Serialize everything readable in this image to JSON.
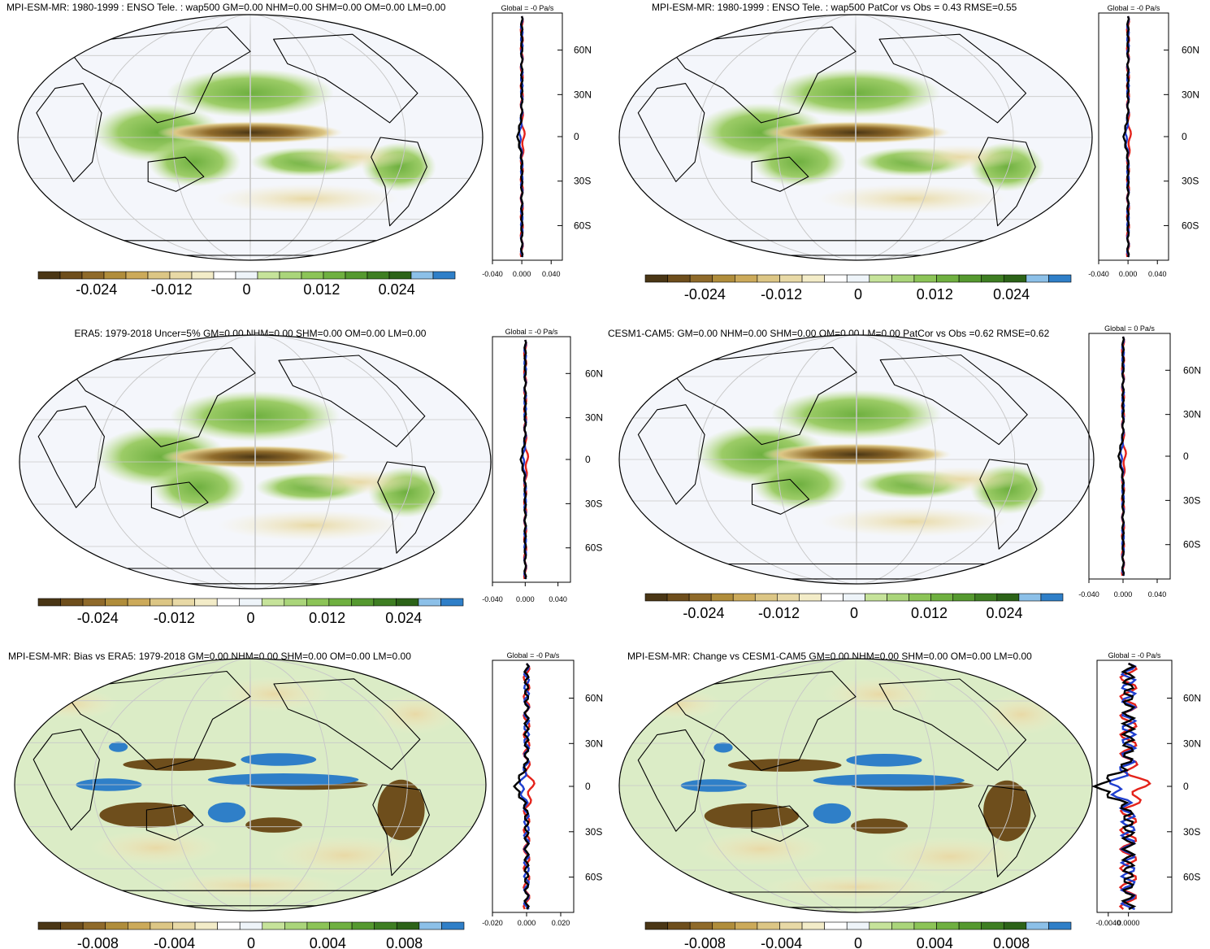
{
  "colorbar_colors": [
    "#4a3615",
    "#6e4e1c",
    "#8f6a2a",
    "#b08d3b",
    "#ccaa5a",
    "#dcc685",
    "#e8d9a6",
    "#f3ecc8",
    "#ffffff",
    "#eef4f9",
    "#c6e39a",
    "#aad57a",
    "#8cc457",
    "#6fb040",
    "#55992f",
    "#3e7e22",
    "#2c6318",
    "#8cc0e8",
    "#2f7fc8"
  ],
  "panels": [
    {
      "title": "MPI-ESM-MR: 1980-1999 : ENSO Tele. : wap500 GM=0.00 NHM=0.00 SHM=0.00 OM=0.00 LM=0.00",
      "profile_title": "Global = -0 Pa/s",
      "lat_labels": [
        "60N",
        "30N",
        "0",
        "30S",
        "60S"
      ],
      "profile_ticks": [
        "-0.040",
        "0.000",
        "0.040"
      ],
      "colorbar_labels": [
        "-0.024",
        "-0.012",
        "0",
        "0.012",
        "0.024"
      ]
    },
    {
      "title": "MPI-ESM-MR: 1980-1999 : ENSO Tele. : wap500 PatCor vs Obs = 0.43 RMSE=0.55",
      "profile_title": "Global = -0 Pa/s",
      "lat_labels": [
        "60N",
        "30N",
        "0",
        "30S",
        "60S"
      ],
      "profile_ticks": [
        "-0.040",
        "0.000",
        "0.040"
      ],
      "colorbar_labels": [
        "-0.024",
        "-0.012",
        "0",
        "0.012",
        "0.024"
      ]
    },
    {
      "title": "ERA5: 1979-2018 Uncer=5% GM=0.00 NHM=0.00 SHM=0.00 OM=0.00 LM=0.00",
      "profile_title": "Global = -0 Pa/s",
      "lat_labels": [
        "60N",
        "30N",
        "0",
        "30S",
        "60S"
      ],
      "profile_ticks": [
        "-0.040",
        "0.000",
        "0.040"
      ],
      "colorbar_labels": [
        "-0.024",
        "-0.012",
        "0",
        "0.012",
        "0.024"
      ]
    },
    {
      "title": "CESM1-CAM5: GM=0.00 NHM=0.00 SHM=0.00 OM=0.00 LM=0.00 PatCor vs Obs =0.62 RMSE=0.62",
      "profile_title": "Global = 0 Pa/s",
      "lat_labels": [
        "60N",
        "30N",
        "0",
        "30S",
        "60S"
      ],
      "profile_ticks": [
        "-0.040",
        "0.000",
        "0.040"
      ],
      "colorbar_labels": [
        "-0.024",
        "-0.012",
        "0",
        "0.012",
        "0.024"
      ]
    },
    {
      "title": "MPI-ESM-MR: Bias vs ERA5: 1979-2018 GM=0.00 NHM=0.00 SHM=0.00 OM=0.00 LM=0.00",
      "profile_title": "Global = -0 Pa/s",
      "lat_labels": [
        "60N",
        "30N",
        "0",
        "30S",
        "60S"
      ],
      "profile_ticks": [
        "-0.020",
        "0.000",
        "0.020"
      ],
      "colorbar_labels": [
        "-0.008",
        "-0.004",
        "0",
        "0.004",
        "0.008"
      ]
    },
    {
      "title": "MPI-ESM-MR: Change vs CESM1-CAM5 GM=0.00 NHM=0.00 SHM=0.00 OM=0.00 LM=0.00",
      "profile_title": "Global = -0 Pa/s",
      "lat_labels": [
        "60N",
        "30N",
        "0",
        "30S",
        "60S"
      ],
      "profile_ticks": [
        "-0.0040",
        "0.0000"
      ],
      "colorbar_labels": [
        "-0.008",
        "-0.004",
        "0",
        "0.004",
        "0.008"
      ]
    }
  ]
}
